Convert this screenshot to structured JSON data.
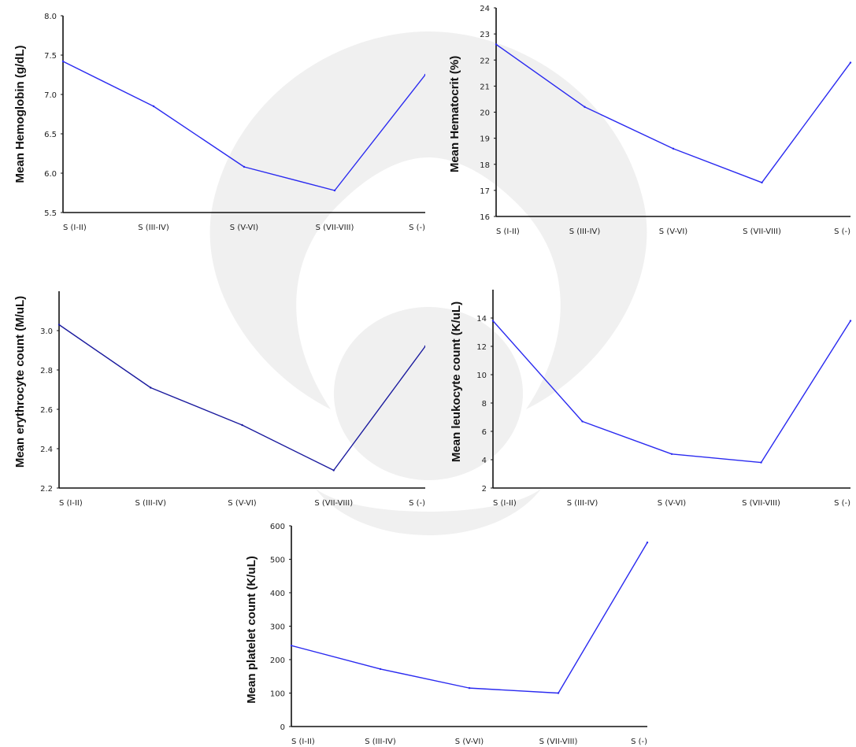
{
  "chart_data": [
    {
      "type": "line",
      "ylabel": "Mean Hemoglobin (g/dL)",
      "categories": [
        "S (I-II)",
        "S (III-IV)",
        "S (V-VI)",
        "S (VII-VIII)",
        "S (-)"
      ],
      "y_ticks": [
        "8.0",
        "7.5",
        "7.0",
        "6.5",
        "6.0",
        "5.5"
      ],
      "ylim": [
        5.5,
        8.0
      ],
      "series": [
        {
          "values": [
            7.42,
            6.85,
            6.08,
            5.78,
            7.25
          ],
          "color": "#2a2af0"
        }
      ]
    },
    {
      "type": "line",
      "ylabel": "Mean Hematocrit (%)",
      "categories": [
        "S (I-II)",
        "S (III-IV)",
        "S (V-VI)",
        "S (VII-VIII)",
        "S (-)"
      ],
      "y_ticks": [
        "24",
        "23",
        "22",
        "21",
        "20",
        "19",
        "18",
        "17",
        "16"
      ],
      "ylim": [
        16,
        24
      ],
      "series": [
        {
          "values": [
            22.6,
            20.2,
            18.6,
            17.3,
            21.9
          ],
          "color": "#2a2af0"
        }
      ]
    },
    {
      "type": "line",
      "ylabel": "Mean erythrocyte count (M/uL)",
      "categories": [
        "S (I-II)",
        "S (III-IV)",
        "S (V-VI)",
        "S (VII-VIII)",
        "S (-)"
      ],
      "y_ticks": [
        "3.0",
        "2.8",
        "2.6",
        "2.4",
        "2.2"
      ],
      "ylim": [
        2.2,
        3.2
      ],
      "series": [
        {
          "values": [
            3.03,
            2.71,
            2.52,
            2.29,
            2.92
          ],
          "color": "#1a1a9e"
        }
      ]
    },
    {
      "type": "line",
      "ylabel": "Mean leukocyte count (K/uL)",
      "categories": [
        "S (I-II)",
        "S (III-IV)",
        "S (V-VI)",
        "S (VII-VIII)",
        "S (-)"
      ],
      "y_ticks": [
        "14",
        "12",
        "10",
        "8",
        "6",
        "4",
        "2"
      ],
      "ylim": [
        2,
        16
      ],
      "series": [
        {
          "values": [
            13.8,
            6.7,
            4.4,
            3.8,
            13.8
          ],
          "color": "#2a2af0"
        }
      ]
    },
    {
      "type": "line",
      "ylabel": "Mean platelet count (K/uL)",
      "categories": [
        "S (I-II)",
        "S (III-IV)",
        "S (V-VI)",
        "S (VII-VIII)",
        "S (-)"
      ],
      "y_ticks": [
        "600",
        "500",
        "400",
        "300",
        "200",
        "100",
        "0"
      ],
      "ylim": [
        0,
        600
      ],
      "series": [
        {
          "values": [
            242,
            172,
            115,
            100,
            550
          ],
          "color": "#2a2af0"
        }
      ]
    }
  ]
}
